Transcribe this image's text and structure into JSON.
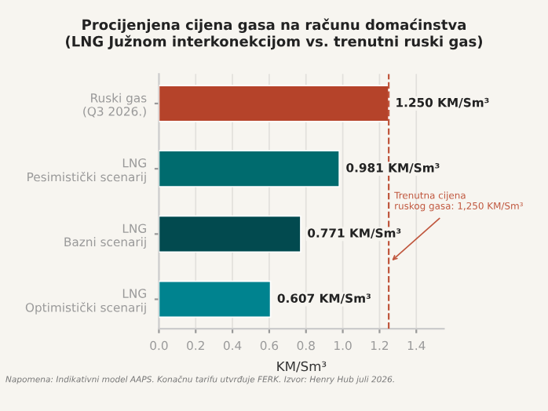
{
  "chart_data": {
    "type": "bar",
    "orientation": "horizontal",
    "title": "Procijenjena cijena gasa na računu domaćinstva\n(LNG Južnom interkonekcijom vs. trenutni ruski gas)",
    "xlabel": "KM/Sm³",
    "categories": [
      "Ruski gas\n(Q3 2026.)",
      "LNG\nPesimistički scenarij",
      "LNG\nBazni scenarij",
      "LNG\nOptimistički scenarij"
    ],
    "values": [
      1.25,
      0.981,
      0.771,
      0.607
    ],
    "colors": [
      "#b5432a",
      "#006b6e",
      "#024a4f",
      "#00838f"
    ],
    "value_labels": [
      "1.250 KM/Sm³",
      "0.981 KM/Sm³",
      "0.771 KM/Sm³",
      "0.607 KM/Sm³"
    ],
    "xlim": [
      0,
      1.55
    ],
    "xticks": [
      {
        "value": 0,
        "label": "0.0"
      },
      {
        "value": 0.2,
        "label": "0.2"
      },
      {
        "value": 0.4,
        "label": "0.4"
      },
      {
        "value": 0.6,
        "label": "0.6"
      },
      {
        "value": 0.8,
        "label": "0.8"
      },
      {
        "value": 1,
        "label": "1.0"
      },
      {
        "value": 1.2,
        "label": "1.2"
      },
      {
        "value": 1.4,
        "label": "1.4"
      }
    ],
    "grid": "x",
    "ref_lines": [
      {
        "axis": "x",
        "value": 1.25,
        "label": "Trenutna cijena\nruskog gasa: 1,250 KM/Sm³",
        "color": "#c0573e",
        "line_style": "dashed"
      }
    ],
    "annotations": [
      "Napomena: Indikativni model AAPS. Konačnu tarifu utvrđuje FERK. Izvor: Henry Hub juli 2026."
    ]
  }
}
